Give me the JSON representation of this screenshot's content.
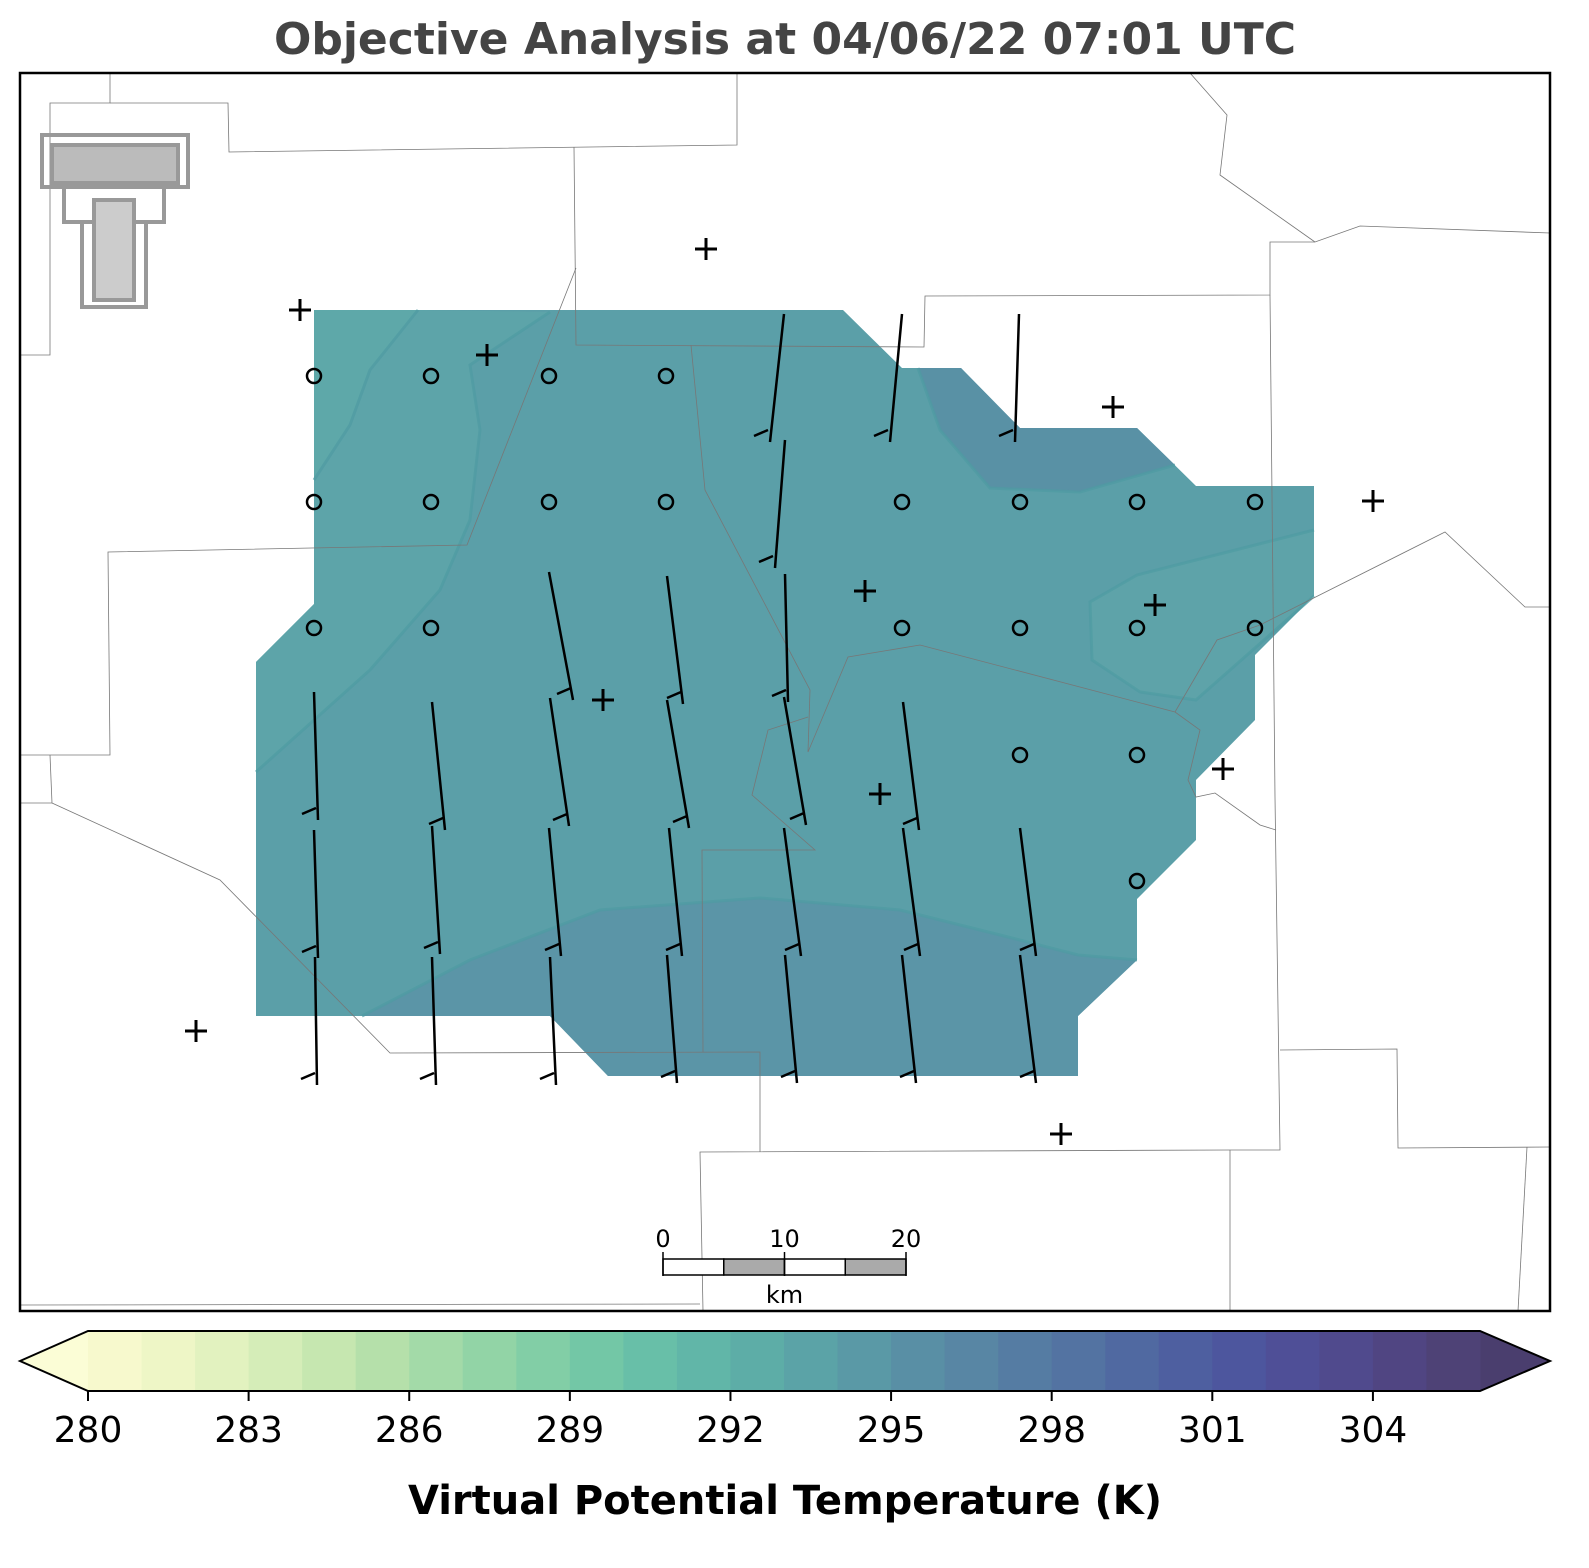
{
  "title": "Objective Analysis at 04/06/22 07:01 UTC",
  "colorbar": {
    "label": "Virtual Potential Temperature (K)",
    "lim": [
      280,
      306
    ],
    "ticks": [
      280,
      283,
      286,
      289,
      292,
      295,
      298,
      301,
      304
    ],
    "colors": [
      "#f7f9cd",
      "#eef6c6",
      "#e2f2bf",
      "#d5edb8",
      "#c6e7b0",
      "#b5e0aa",
      "#a3daa8",
      "#92d4a6",
      "#82cea6",
      "#73c7a6",
      "#68bfa8",
      "#61b6a8",
      "#5dada7",
      "#5ba3a7",
      "#5a99a6",
      "#598fa5",
      "#5886a4",
      "#557ca3",
      "#5373a2",
      "#5069a1",
      "#4e5fa0",
      "#4d569e",
      "#4f4f97",
      "#504a8d",
      "#504582",
      "#4e4276"
    ],
    "under_color": "#fbfdd6",
    "over_color": "#4a3e6e"
  },
  "scale_bar": {
    "ticks": [
      0,
      10,
      20
    ],
    "unit": "km"
  }
}
